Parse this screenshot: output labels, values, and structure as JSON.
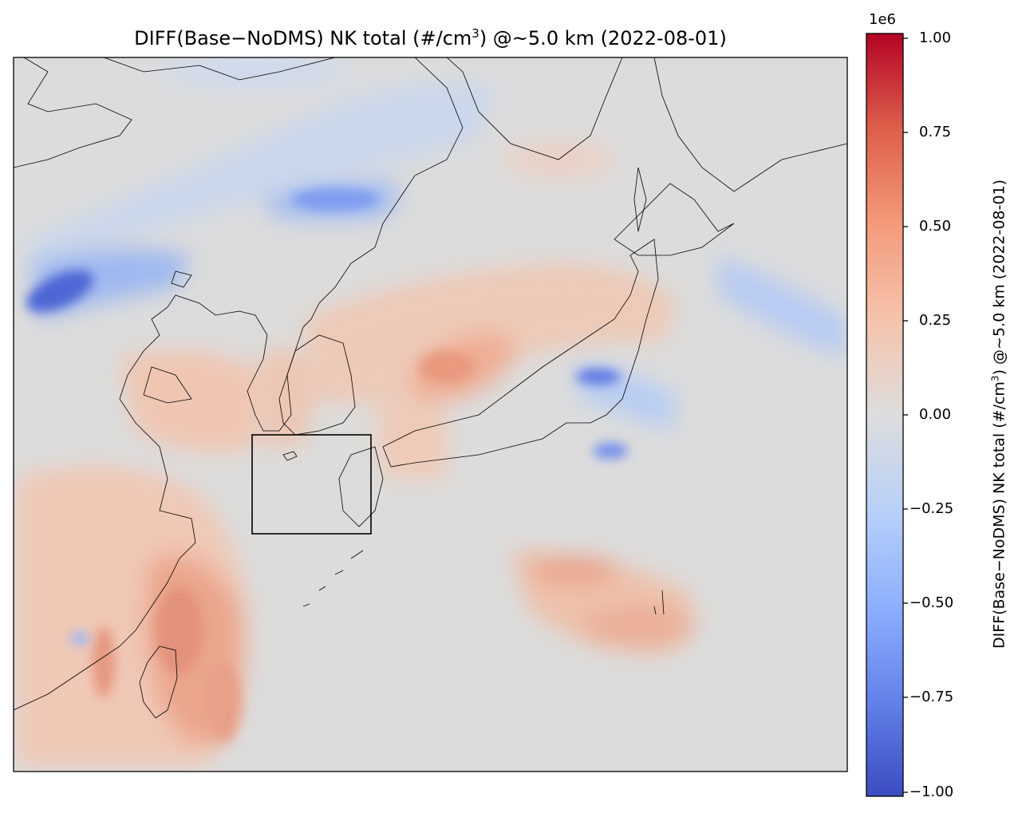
{
  "title": {
    "prefix": "DIFF(Base−NoDMS) NK total (#/cm",
    "sup": "3",
    "suffix": ") @~5.0 km (2022-08-01)"
  },
  "colorbar": {
    "label_prefix": "DIFF(Base−NoDMS) NK total (#/cm",
    "label_sup": "3",
    "label_suffix": ") @~5.0 km (2022-08-01)",
    "exponent": "1e6",
    "ticks": [
      "1.00",
      "0.75",
      "0.50",
      "0.25",
      "0.00",
      "−0.25",
      "−0.50",
      "−0.75",
      "−1.00"
    ],
    "colormap": "coolwarm",
    "colors": {
      "min": "#3b4cc0",
      "mid": "#dddddd",
      "max": "#b40426"
    }
  },
  "map": {
    "neutral_color": "#dcdcdc",
    "highlight_box": true
  }
}
